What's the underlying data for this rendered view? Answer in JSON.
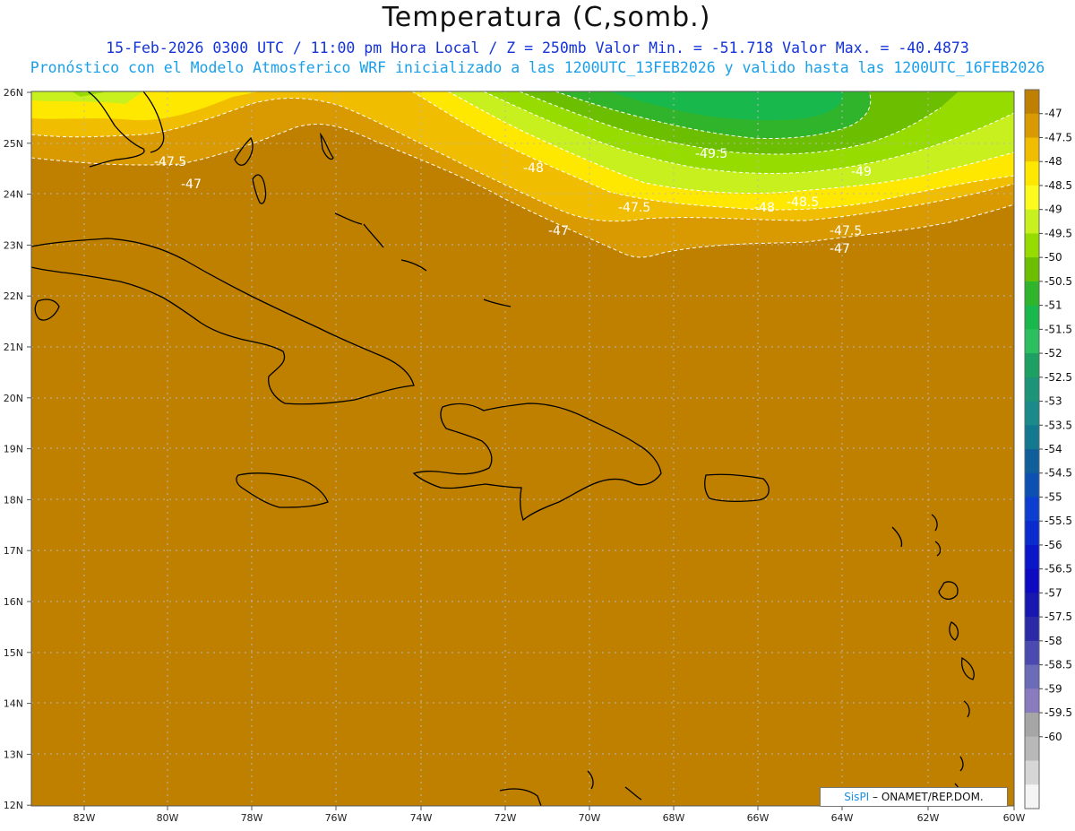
{
  "header": {
    "title": "Temperatura (C,somb.)",
    "subtitle1": "15-Feb-2026  0300 UTC / 11:00 pm Hora Local / Z = 250mb  Valor Min. = -51.718  Valor Max. = -40.4873",
    "subtitle2": "Pronóstico con el Modelo Atmosferico WRF inicializado a las 1200UTC_13FEB2026 y valido hasta las  1200UTC_16FEB2026"
  },
  "axes": {
    "lon_labels": [
      "82W",
      "80W",
      "78W",
      "76W",
      "74W",
      "72W",
      "70W",
      "68W",
      "66W",
      "64W",
      "62W",
      "60W"
    ],
    "lat_labels": [
      "26N",
      "25N",
      "24N",
      "23N",
      "22N",
      "21N",
      "20N",
      "19N",
      "18N",
      "17N",
      "16N",
      "15N",
      "14N",
      "13N",
      "12N"
    ]
  },
  "colorbar": {
    "labels": [
      "-47",
      "-47.5",
      "-48",
      "-48.5",
      "-49",
      "-49.5",
      "-50",
      "-50.5",
      "-51",
      "-51.5",
      "-52",
      "-52.5",
      "-53",
      "-53.5",
      "-54",
      "-54.5",
      "-55",
      "-55.5",
      "-56",
      "-56.5",
      "-57",
      "-57.5",
      "-58",
      "-58.5",
      "-59",
      "-59.5",
      "-60"
    ],
    "colors": [
      "#bf8000",
      "#d89a00",
      "#f0bd00",
      "#ffe800",
      "#fbfb1e",
      "#c8f01e",
      "#96dc00",
      "#6cbf00",
      "#2fb42b",
      "#19b84d",
      "#2cbf60",
      "#1ea063",
      "#1d9478",
      "#1a8a8a",
      "#12798f",
      "#105f9a",
      "#0d50b4",
      "#0c3ed1",
      "#0a2bcd",
      "#0c16c9",
      "#0e0ac2",
      "#1817b0",
      "#2a2aa7",
      "#4a4ab1",
      "#6b6bb8",
      "#8a7bbe",
      "#a6a6a6",
      "#b8b8b8",
      "#d6d6d6",
      "#f4f4f4"
    ]
  },
  "contour_labels": [
    "-47.5",
    "-47",
    "-48",
    "-49.5",
    "-49",
    "-47.5",
    "-48",
    "-48.5",
    "-47",
    "-47.5",
    "-47"
  ],
  "credit": {
    "brand": "SisPI",
    "text": " – ONAMET/REP.DOM."
  }
}
